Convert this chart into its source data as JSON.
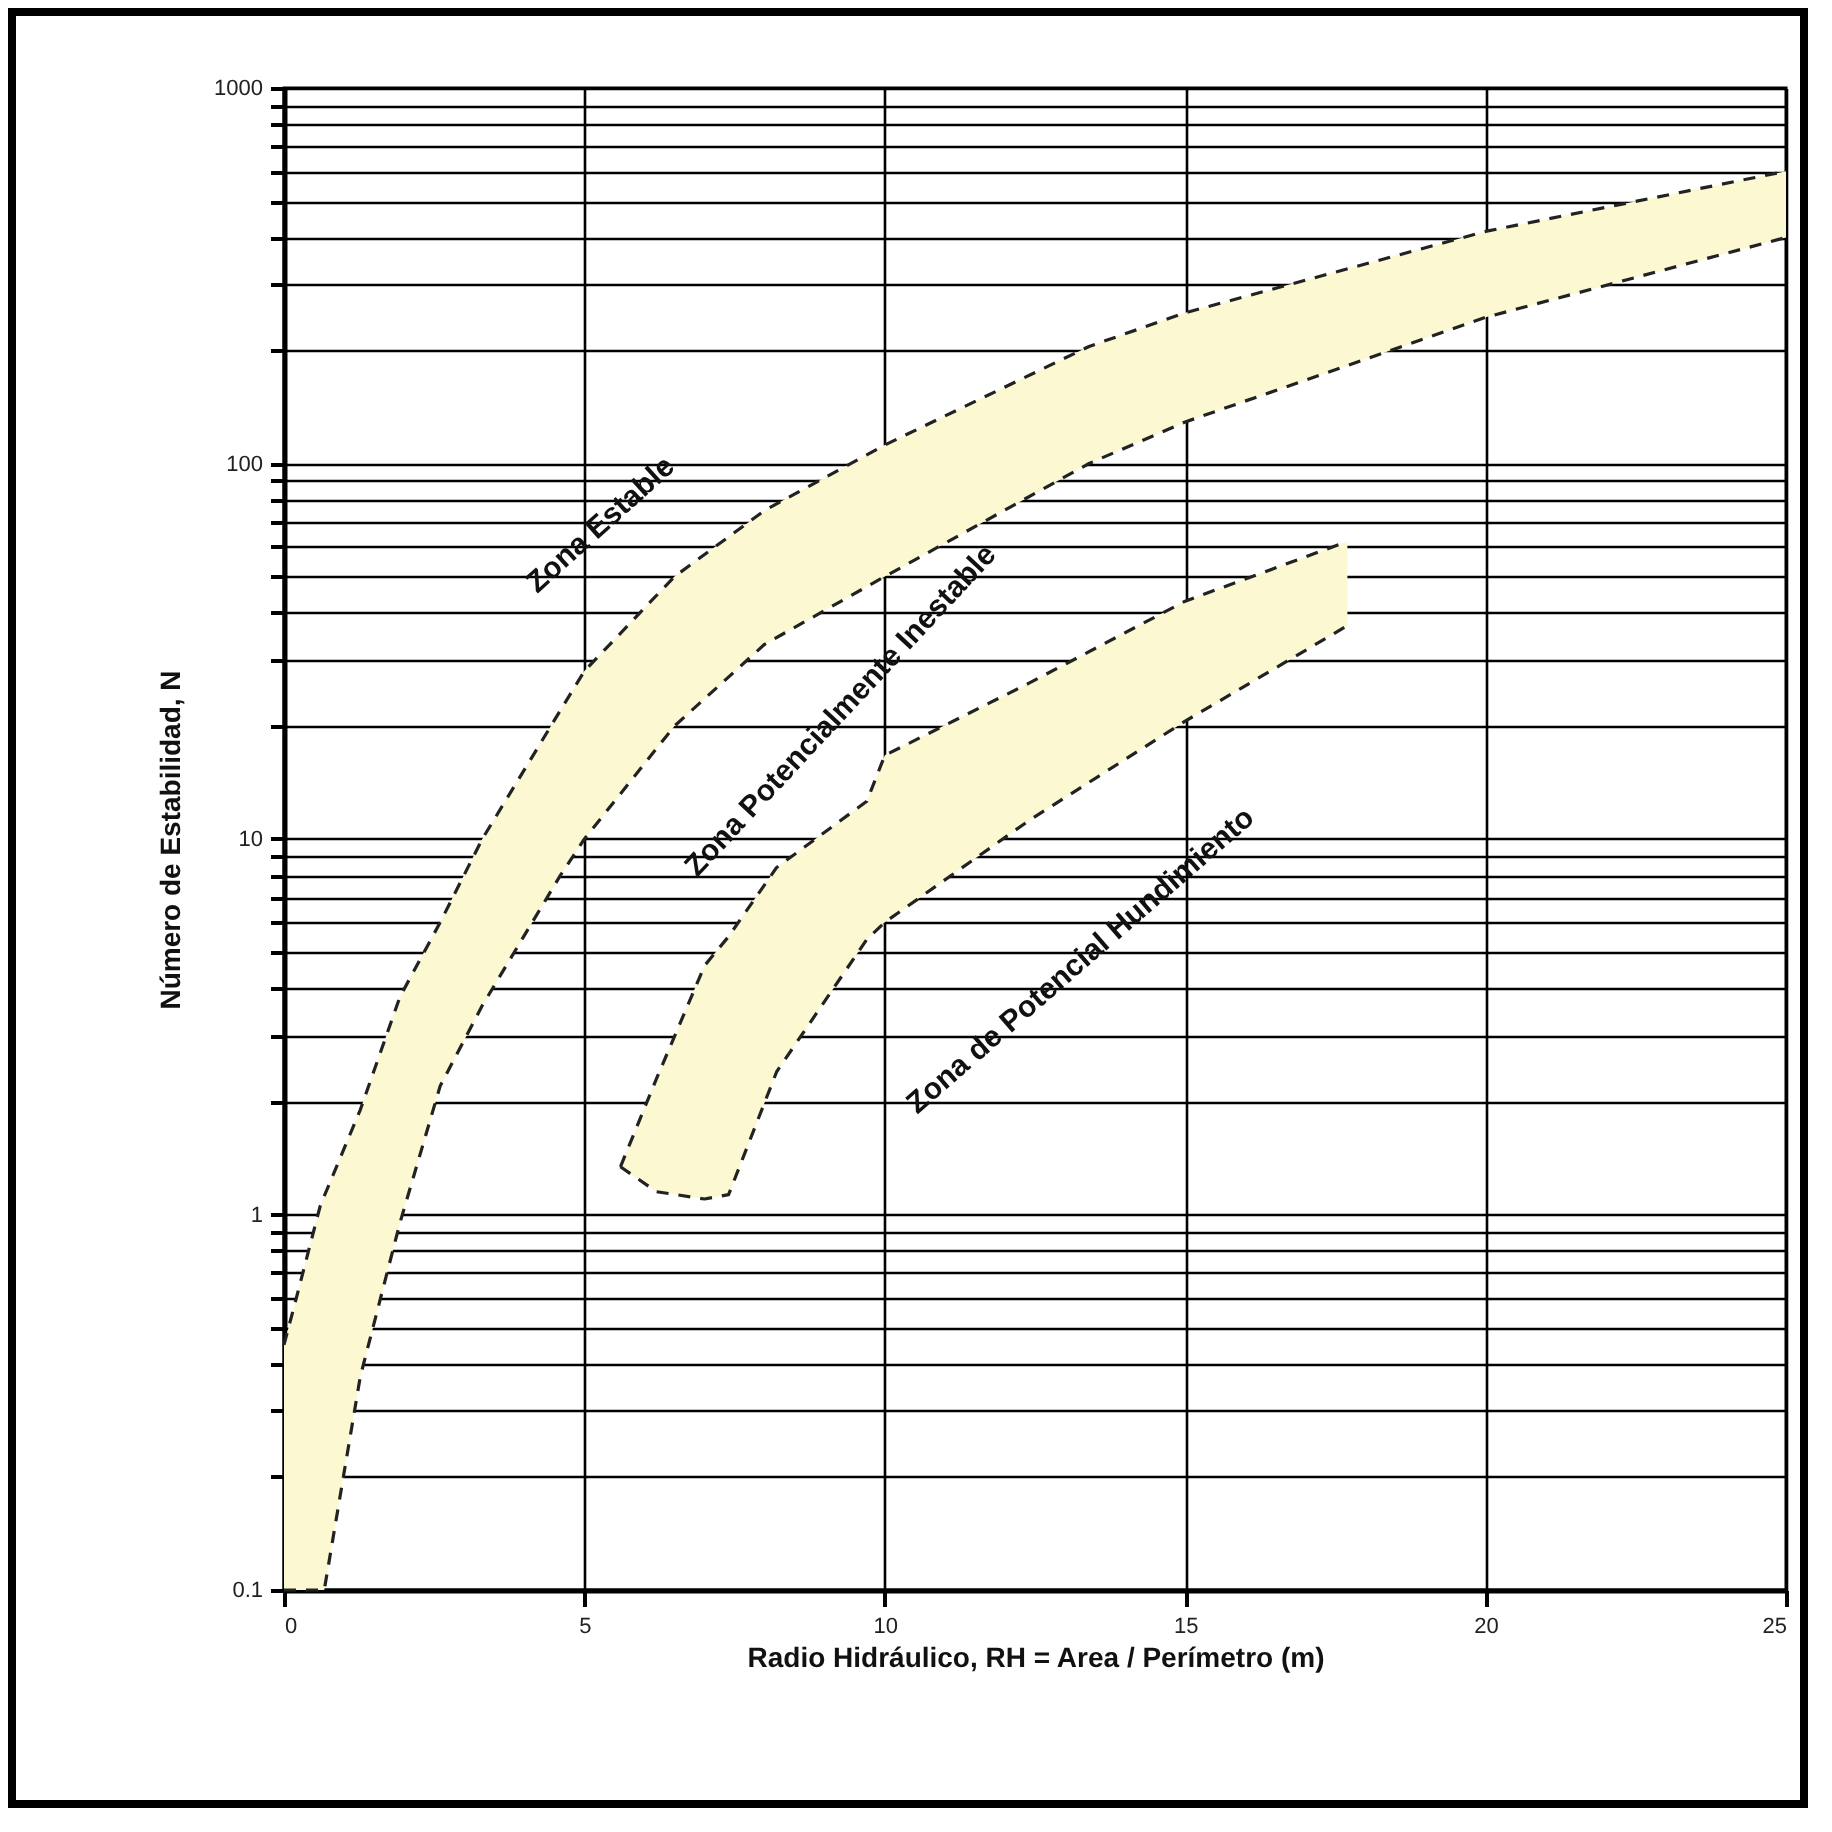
{
  "chart_data": {
    "type": "line",
    "xlabel": "Radio Hidráulico, RH = Area / Perímetro (m)",
    "ylabel": "Número de Estabilidad, N",
    "log": "y",
    "grid": true,
    "line_style": "dashed",
    "marker": "none",
    "xlim": [
      0,
      25
    ],
    "xticks": [
      0,
      5,
      10,
      15,
      20,
      25
    ],
    "ylim": [
      0.1,
      1000
    ],
    "yticks": [
      0.1,
      {
        "value": 0.2,
        "label": null
      },
      {
        "value": 0.3,
        "label": null
      },
      {
        "value": 0.4,
        "label": null
      },
      {
        "value": 0.5,
        "label": null
      },
      {
        "value": 0.6,
        "label": null
      },
      {
        "value": 0.7,
        "label": null
      },
      {
        "value": 0.8,
        "label": null
      },
      {
        "value": 0.9,
        "label": null
      },
      1,
      {
        "value": 2,
        "label": null
      },
      {
        "value": 3,
        "label": null
      },
      {
        "value": 4,
        "label": null
      },
      {
        "value": 5,
        "label": null
      },
      {
        "value": 6,
        "label": null
      },
      {
        "value": 7,
        "label": null
      },
      {
        "value": 8,
        "label": null
      },
      {
        "value": 9,
        "label": null
      },
      10,
      {
        "value": 20,
        "label": null
      },
      {
        "value": 30,
        "label": null
      },
      {
        "value": 40,
        "label": null
      },
      {
        "value": 50,
        "label": null
      },
      {
        "value": 60,
        "label": null
      },
      {
        "value": 70,
        "label": null
      },
      {
        "value": 80,
        "label": null
      },
      {
        "value": 90,
        "label": null
      },
      100,
      {
        "value": 200,
        "label": null
      },
      {
        "value": 300,
        "label": null
      },
      {
        "value": 400,
        "label": null
      },
      {
        "value": 500,
        "label": null
      },
      {
        "value": 600,
        "label": null
      },
      {
        "value": 700,
        "label": null
      },
      {
        "value": 800,
        "label": null
      },
      {
        "value": 900,
        "label": null
      },
      1000
    ],
    "series": [
      {
        "color": "#222222",
        "x": [
          0,
          0.17,
          0.6,
          0.67,
          1.27,
          1.93,
          2.6,
          3.3,
          4.6,
          5,
          6.5,
          8,
          10,
          13.4,
          15,
          20,
          25
        ],
        "values": [
          0.45,
          0.57,
          1.05,
          1.12,
          1.9,
          3.8,
          6,
          10,
          22,
          28,
          50,
          75,
          112,
          205,
          252,
          415,
          600
        ],
        "lower": [
          0.1,
          0.1,
          0.1,
          0.1,
          0.37,
          0.95,
          2.2,
          3.6,
          8,
          10,
          20,
          33,
          50,
          100,
          129,
          245,
          400
        ],
        "upper": [
          0.45,
          0.57,
          1.05,
          1.12,
          1.9,
          3.8,
          6,
          10,
          22,
          28,
          50,
          75,
          112,
          205,
          252,
          415,
          600
        ]
      },
      {
        "color": "#222222",
        "x": [
          0,
          0.17,
          0.6,
          0.67,
          1.27,
          1.93,
          2.6,
          3.3,
          4.6,
          5,
          6.5,
          8,
          10,
          13.4,
          15,
          20,
          25
        ],
        "values": [
          0.1,
          0.1,
          0.1,
          0.1,
          0.37,
          0.95,
          2.2,
          3.6,
          8,
          10,
          20,
          33,
          50,
          100,
          129,
          245,
          400
        ]
      },
      {
        "color": "#222222",
        "x": [
          5.6,
          6.2,
          7,
          7.4,
          8.2,
          9.7,
          10,
          12.4,
          15,
          17.7
        ],
        "values": [
          1.34,
          2.3,
          4.6,
          5.5,
          8.4,
          12.6,
          16.7,
          26,
          43,
          62
        ],
        "lower": [
          1.34,
          1.15,
          1.1,
          1.13,
          2.4,
          5.4,
          6,
          11.2,
          20.6,
          37
        ],
        "upper": [
          1.34,
          2.3,
          4.6,
          5.5,
          8.4,
          12.6,
          16.7,
          26,
          43,
          62
        ]
      },
      {
        "color": "#222222",
        "x": [
          5.6,
          6.2,
          7,
          7.4,
          8.2,
          9.7,
          10,
          12.4,
          15,
          17.7
        ],
        "values": [
          1.34,
          1.15,
          1.1,
          1.13,
          2.4,
          5.4,
          6,
          11.2,
          20.6,
          37
        ]
      }
    ],
    "annotations": [
      "Zona Estable",
      "Zona Potencialmente Inestable",
      "Zona de Potencial Hundimiento"
    ]
  }
}
